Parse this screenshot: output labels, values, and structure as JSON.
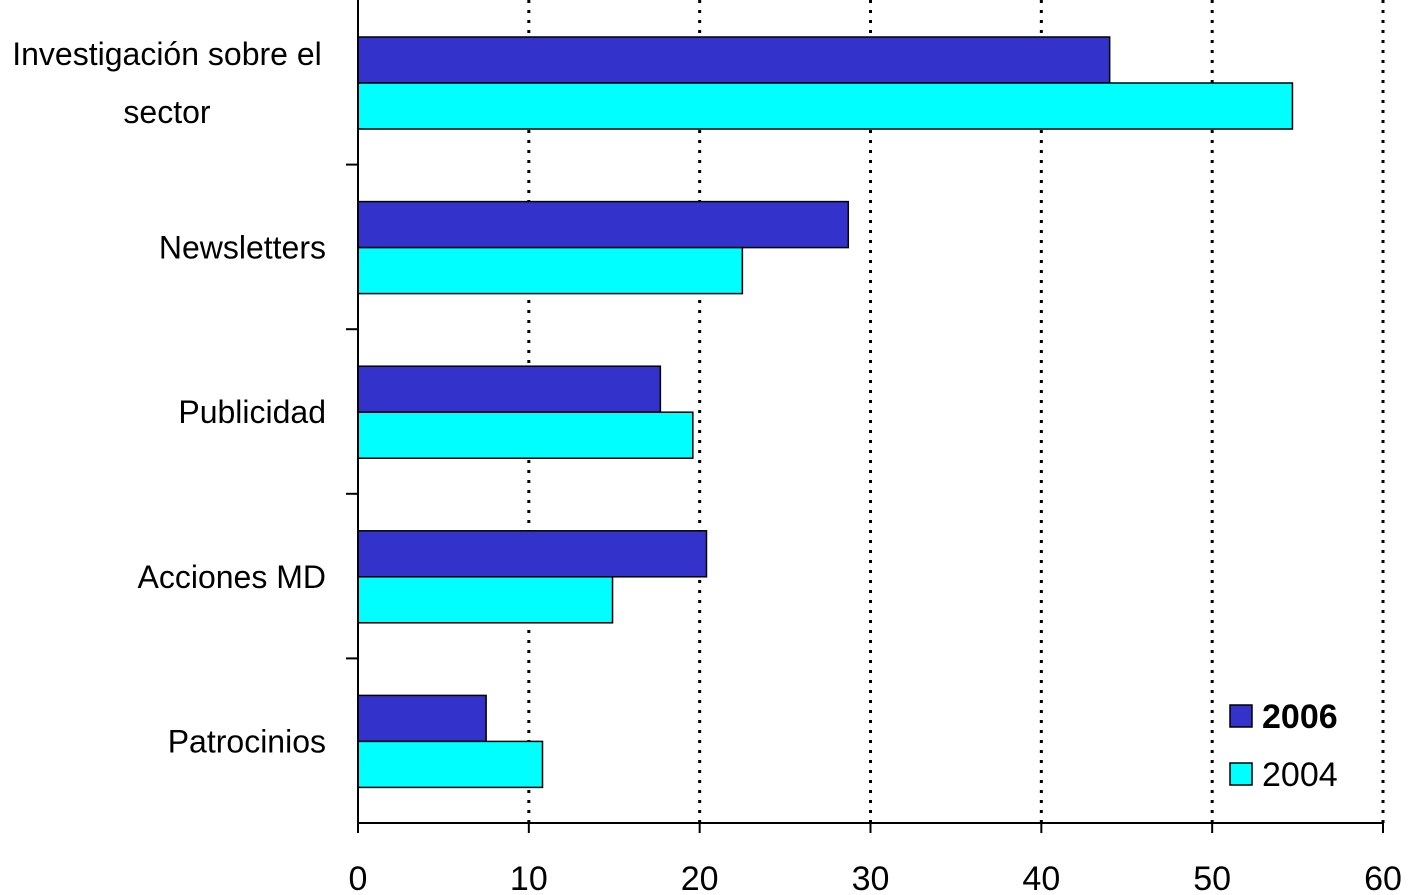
{
  "chart_data": {
    "type": "bar",
    "orientation": "horizontal",
    "categories": [
      [
        "Investigación sobre el",
        "sector"
      ],
      [
        "Newsletters"
      ],
      [
        "Publicidad"
      ],
      [
        "Acciones MD"
      ],
      [
        "Patrocinios"
      ]
    ],
    "series": [
      {
        "name": "2006",
        "color": "#3333cc",
        "values": [
          44,
          28.7,
          17.7,
          20.4,
          7.5
        ]
      },
      {
        "name": "2004",
        "color": "#00ffff",
        "values": [
          54.7,
          22.5,
          19.6,
          14.9,
          10.8
        ]
      }
    ],
    "xlim": [
      0,
      60
    ],
    "xticks": [
      "0",
      "10",
      "20",
      "30",
      "40",
      "50",
      "60"
    ],
    "grid": "vertical dotted",
    "legend": {
      "placement": "bottom-right",
      "entries": [
        {
          "label": "2006",
          "bold": true
        },
        {
          "label": "2004",
          "bold": false
        }
      ]
    },
    "title": "",
    "xlabel": "",
    "ylabel": ""
  }
}
